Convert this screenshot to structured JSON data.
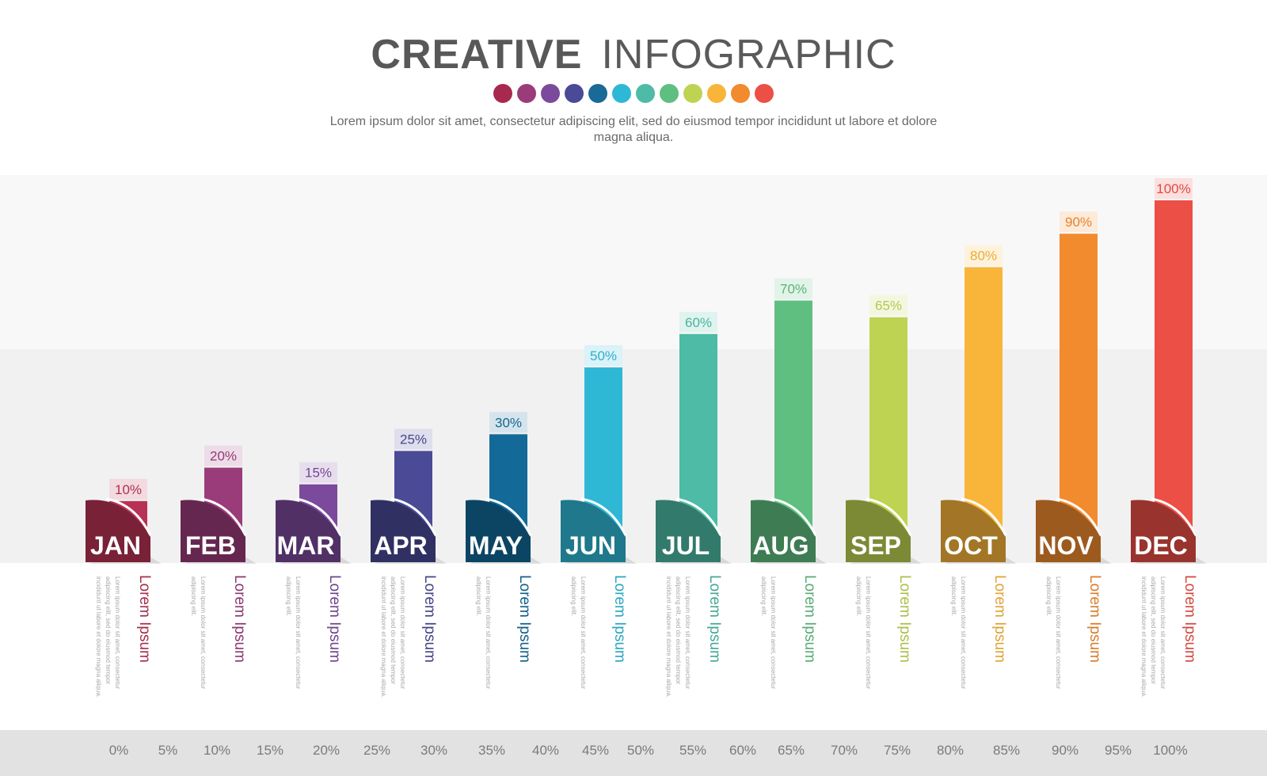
{
  "header": {
    "title_bold": "CREATIVE",
    "title_light": "INFOGRAPHIC",
    "subtitle": "Lorem ipsum dolor sit amet, consectetur adipiscing elit, sed do eiusmod tempor incididunt ut labore et dolore magna aliqua."
  },
  "palette": [
    "#a8294f",
    "#9b3c7a",
    "#7b4a9c",
    "#4a4a96",
    "#1a6a98",
    "#2fb8d6",
    "#4dbba5",
    "#5fbf80",
    "#bfd352",
    "#f9b53a",
    "#f28a2e",
    "#ec4f45"
  ],
  "chart_data": {
    "type": "bar",
    "categories": [
      "JAN",
      "FEB",
      "MAR",
      "APR",
      "MAY",
      "JUN",
      "JUL",
      "AUG",
      "SEP",
      "OCT",
      "NOV",
      "DEC"
    ],
    "values": [
      10,
      20,
      15,
      25,
      30,
      50,
      60,
      70,
      65,
      80,
      90,
      100
    ],
    "data_labels": [
      "10%",
      "20%",
      "15%",
      "25%",
      "30%",
      "50%",
      "60%",
      "70%",
      "65%",
      "80%",
      "90%",
      "100%"
    ],
    "colors": [
      "#b83255",
      "#9b3c7a",
      "#7b4a9c",
      "#4a4a96",
      "#136a98",
      "#2fb8d6",
      "#4dbba5",
      "#5fbf80",
      "#bfd352",
      "#f9b53a",
      "#f28a2e",
      "#ec4f45"
    ],
    "title": "",
    "xlabel": "",
    "ylabel": "",
    "ylim": [
      0,
      100
    ],
    "scale_labels": [
      "0%",
      "5%",
      "10%",
      "15%",
      "20%",
      "25%",
      "30%",
      "35%",
      "40%",
      "45%",
      "50%",
      "55%",
      "60%",
      "65%",
      "70%",
      "75%",
      "80%",
      "85%",
      "90%",
      "95%",
      "100%"
    ],
    "item_titles": [
      "Lorem Ipsum",
      "Lorem Ipsum",
      "Lorem Ipsum",
      "Lorem Ipsum",
      "Lorem Ipsum",
      "Lorem Ipsum",
      "Lorem Ipsum",
      "Lorem Ipsum",
      "Lorem Ipsum",
      "Lorem Ipsum",
      "Lorem Ipsum",
      "Lorem Ipsum"
    ],
    "item_descriptions": [
      "Lorem ipsum dolor sit amet, consectetur adipiscing elit, sed do eiusmod tempor incididunt ut labore et dolore magna aliqua.",
      "Lorem ipsum dolor sit amet, consectetur adipiscing elit.",
      "Lorem ipsum dolor sit amet, consectetur adipiscing elit.",
      "Lorem ipsum dolor sit amet, consectetur adipiscing elit, sed do eiusmod tempor incididunt ut labore et dolore magna aliqua.",
      "Lorem ipsum dolor sit amet, consectetur adipiscing elit.",
      "Lorem ipsum dolor sit amet, consectetur adipiscing elit.",
      "Lorem ipsum dolor sit amet, consectetur adipiscing elit, sed do eiusmod tempor incididunt ut labore et dolore magna aliqua.",
      "Lorem ipsum dolor sit amet, consectetur adipiscing elit.",
      "Lorem ipsum dolor sit amet, consectetur adipiscing elit.",
      "Lorem ipsum dolor sit amet, consectetur adipiscing elit.",
      "Lorem ipsum dolor sit amet, consectetur adipiscing elit.",
      "Lorem ipsum dolor sit amet, consectetur adipiscing elit, sed do eiusmod tempor incididunt ut labore et dolore magna aliqua."
    ]
  }
}
